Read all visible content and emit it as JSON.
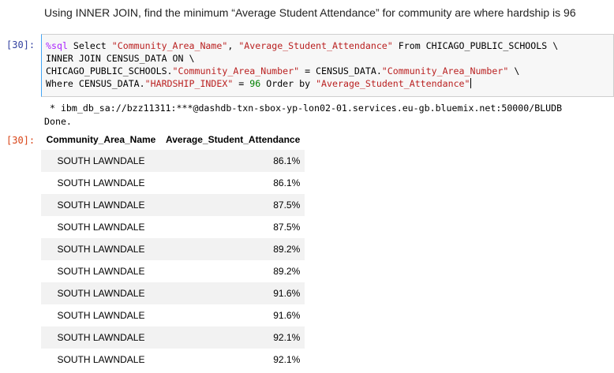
{
  "markdown": {
    "text": "Using INNER JOIN, find the minimum “Average Student Attendance” for community are where hardship is 96"
  },
  "input_cell": {
    "prompt": "[30]:",
    "lines": [
      "%sql Select \"Community_Area_Name\", \"Average_Student_Attendance\" From CHICAGO_PUBLIC_SCHOOLS \\",
      "INNER JOIN CENSUS_DATA ON \\",
      "CHICAGO_PUBLIC_SCHOOLS.\"Community_Area_Number\" = CENSUS_DATA.\"Community_Area_Number\" \\",
      "Where CENSUS_DATA.\"HARDSHIP_INDEX\" = 96 Order by \"Average_Student_Attendance\""
    ],
    "tokens": {
      "l1_magic": "%sql",
      "l1_a": " Select ",
      "l1_s1": "\"Community_Area_Name\"",
      "l1_b": ", ",
      "l1_s2": "\"Average_Student_Attendance\"",
      "l1_c": " From CHICAGO_PUBLIC_SCHOOLS \\",
      "l2": "INNER JOIN CENSUS_DATA ON \\",
      "l3_a": "CHICAGO_PUBLIC_SCHOOLS.",
      "l3_s1": "\"Community_Area_Number\"",
      "l3_b": " = CENSUS_DATA.",
      "l3_s2": "\"Community_Area_Number\"",
      "l3_c": " \\",
      "l4_a": "Where CENSUS_DATA.",
      "l4_s1": "\"HARDSHIP_INDEX\"",
      "l4_b": " = ",
      "l4_num": "96",
      "l4_c": " Order by ",
      "l4_s2": "\"Average_Student_Attendance\""
    }
  },
  "output_cell": {
    "prompt": "[30]:",
    "stdout_lines": [
      " * ibm_db_sa://bzz11311:***@dashdb-txn-sbox-yp-lon02-01.services.eu-gb.bluemix.net:50000/BLUDB",
      "Done."
    ],
    "table": {
      "columns": [
        "Community_Area_Name",
        "Average_Student_Attendance"
      ],
      "rows": [
        [
          "SOUTH LAWNDALE",
          "86.1%"
        ],
        [
          "SOUTH LAWNDALE",
          "86.1%"
        ],
        [
          "SOUTH LAWNDALE",
          "87.5%"
        ],
        [
          "SOUTH LAWNDALE",
          "87.5%"
        ],
        [
          "SOUTH LAWNDALE",
          "89.2%"
        ],
        [
          "SOUTH LAWNDALE",
          "89.2%"
        ],
        [
          "SOUTH LAWNDALE",
          "91.6%"
        ],
        [
          "SOUTH LAWNDALE",
          "91.6%"
        ],
        [
          "SOUTH LAWNDALE",
          "92.1%"
        ],
        [
          "SOUTH LAWNDALE",
          "92.1%"
        ]
      ]
    }
  },
  "colors": {
    "input_prompt": "#303f9f",
    "output_prompt": "#d84315",
    "magic": "#aa22ff",
    "string": "#ba2121",
    "number": "#008000",
    "cell_background": "#f7f7f7",
    "row_stripe": "#f2f2f2"
  }
}
